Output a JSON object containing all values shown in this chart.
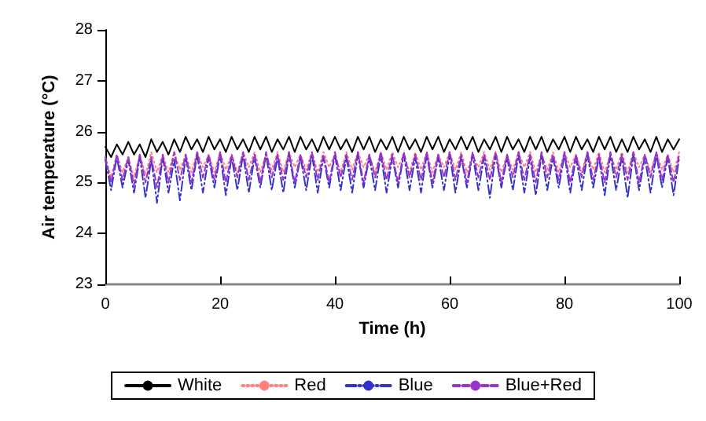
{
  "chart_data": {
    "type": "line",
    "xlabel": "Time (h)",
    "ylabel": "Air temperature (°C)",
    "x": [
      0,
      1,
      2,
      3,
      4,
      5,
      6,
      7,
      8,
      9,
      10,
      11,
      12,
      13,
      14,
      15,
      16,
      17,
      18,
      19,
      20,
      21,
      22,
      23,
      24,
      25,
      26,
      27,
      28,
      29,
      30,
      31,
      32,
      33,
      34,
      35,
      36,
      37,
      38,
      39,
      40,
      41,
      42,
      43,
      44,
      45,
      46,
      47,
      48,
      49,
      50,
      51,
      52,
      53,
      54,
      55,
      56,
      57,
      58,
      59,
      60,
      61,
      62,
      63,
      64,
      65,
      66,
      67,
      68,
      69,
      70,
      71,
      72,
      73,
      74,
      75,
      76,
      77,
      78,
      79,
      80,
      81,
      82,
      83,
      84,
      85,
      86,
      87,
      88,
      89,
      90,
      91,
      92,
      93,
      94,
      95,
      96,
      97,
      98,
      99,
      100
    ],
    "series": [
      {
        "name": "White",
        "color": "#000000",
        "line_style": "solid",
        "values": [
          25.7,
          25.5,
          25.75,
          25.55,
          25.8,
          25.55,
          25.75,
          25.5,
          25.85,
          25.6,
          25.8,
          25.55,
          25.85,
          25.6,
          25.9,
          25.65,
          25.85,
          25.6,
          25.9,
          25.65,
          25.85,
          25.6,
          25.9,
          25.65,
          25.85,
          25.6,
          25.9,
          25.65,
          25.9,
          25.6,
          25.85,
          25.65,
          25.9,
          25.6,
          25.9,
          25.65,
          25.85,
          25.6,
          25.9,
          25.65,
          25.9,
          25.65,
          25.85,
          25.6,
          25.9,
          25.65,
          25.9,
          25.6,
          25.85,
          25.65,
          25.9,
          25.6,
          25.9,
          25.65,
          25.85,
          25.6,
          25.9,
          25.65,
          25.9,
          25.6,
          25.85,
          25.65,
          25.9,
          25.65,
          25.9,
          25.6,
          25.85,
          25.65,
          25.9,
          25.6,
          25.9,
          25.65,
          25.85,
          25.6,
          25.9,
          25.65,
          25.9,
          25.6,
          25.85,
          25.65,
          25.9,
          25.6,
          25.9,
          25.65,
          25.85,
          25.6,
          25.9,
          25.65,
          25.9,
          25.6,
          25.85,
          25.6,
          25.9,
          25.65,
          25.85,
          25.6,
          25.9,
          25.6,
          25.85,
          25.65,
          25.85
        ]
      },
      {
        "name": "Red",
        "color": "#ff8080",
        "line_style": "dotted",
        "values": [
          25.5,
          25.1,
          25.55,
          25.2,
          25.5,
          25.1,
          25.55,
          25.15,
          25.6,
          25.2,
          25.55,
          25.2,
          25.6,
          25.25,
          25.55,
          25.2,
          25.6,
          25.3,
          25.55,
          25.2,
          25.6,
          25.25,
          25.55,
          25.2,
          25.6,
          25.3,
          25.6,
          25.2,
          25.55,
          25.25,
          25.6,
          25.2,
          25.6,
          25.3,
          25.55,
          25.25,
          25.6,
          25.2,
          25.6,
          25.3,
          25.55,
          25.2,
          25.6,
          25.25,
          25.6,
          25.3,
          25.55,
          25.2,
          25.6,
          25.25,
          25.6,
          25.3,
          25.55,
          25.2,
          25.6,
          25.25,
          25.6,
          25.2,
          25.55,
          25.3,
          25.6,
          25.25,
          25.6,
          25.2,
          25.55,
          25.3,
          25.6,
          25.25,
          25.6,
          25.2,
          25.55,
          25.25,
          25.6,
          25.3,
          25.6,
          25.2,
          25.55,
          25.25,
          25.6,
          25.2,
          25.6,
          25.3,
          25.55,
          25.2,
          25.6,
          25.25,
          25.6,
          25.2,
          25.55,
          25.25,
          25.6,
          25.2,
          25.6,
          25.3,
          25.55,
          25.2,
          25.6,
          25.25,
          25.55,
          25.2,
          25.6
        ]
      },
      {
        "name": "Blue",
        "color": "#3333cc",
        "line_style": "dashdot",
        "values": [
          25.45,
          24.85,
          25.5,
          24.9,
          25.45,
          24.8,
          25.5,
          24.7,
          25.45,
          24.6,
          25.5,
          24.8,
          25.45,
          24.65,
          25.5,
          24.85,
          25.55,
          24.8,
          25.5,
          24.9,
          25.55,
          24.75,
          25.5,
          24.85,
          25.55,
          24.8,
          25.5,
          24.9,
          25.55,
          24.85,
          25.5,
          24.8,
          25.55,
          24.9,
          25.5,
          24.85,
          25.55,
          24.8,
          25.5,
          24.9,
          25.55,
          24.85,
          25.5,
          24.8,
          25.55,
          24.9,
          25.5,
          24.85,
          25.55,
          24.8,
          25.5,
          24.9,
          25.55,
          24.85,
          25.5,
          24.8,
          25.55,
          24.9,
          25.5,
          24.85,
          25.55,
          24.8,
          25.5,
          24.9,
          25.55,
          24.85,
          25.5,
          24.7,
          25.55,
          24.9,
          25.5,
          24.85,
          25.55,
          24.8,
          25.5,
          24.75,
          25.55,
          24.85,
          25.5,
          24.9,
          25.55,
          24.8,
          25.5,
          24.85,
          25.55,
          24.9,
          25.5,
          24.75,
          25.55,
          24.85,
          25.5,
          24.7,
          25.55,
          24.85,
          25.5,
          24.8,
          25.55,
          24.9,
          25.5,
          24.75,
          25.5
        ]
      },
      {
        "name": "Blue+Red",
        "color": "#9933cc",
        "line_style": "dashed",
        "values": [
          25.5,
          25.0,
          25.55,
          25.05,
          25.5,
          24.95,
          25.55,
          25.0,
          25.5,
          24.9,
          25.55,
          25.0,
          25.6,
          25.05,
          25.55,
          25.0,
          25.6,
          25.1,
          25.55,
          25.05,
          25.6,
          25.0,
          25.55,
          25.1,
          25.6,
          25.05,
          25.55,
          25.0,
          25.6,
          25.1,
          25.55,
          25.05,
          25.6,
          25.0,
          25.55,
          25.1,
          25.6,
          25.05,
          25.55,
          25.0,
          25.6,
          25.1,
          25.55,
          25.05,
          25.6,
          25.0,
          25.55,
          25.1,
          25.6,
          25.05,
          25.55,
          25.0,
          25.6,
          25.1,
          25.55,
          25.05,
          25.6,
          25.0,
          25.55,
          25.1,
          25.6,
          25.05,
          25.55,
          25.0,
          25.6,
          25.1,
          25.55,
          25.05,
          25.6,
          25.0,
          25.55,
          25.1,
          25.6,
          25.05,
          25.55,
          25.0,
          25.6,
          25.1,
          25.55,
          25.05,
          25.6,
          25.0,
          25.55,
          25.1,
          25.6,
          25.05,
          25.55,
          25.0,
          25.6,
          25.1,
          25.55,
          25.05,
          25.6,
          25.0,
          25.55,
          25.1,
          25.6,
          25.05,
          25.55,
          25.0,
          25.55
        ]
      }
    ],
    "xlim": [
      0,
      100
    ],
    "xticks": [
      0,
      20,
      40,
      60,
      80,
      100
    ],
    "ylim": [
      23,
      28
    ],
    "yticks": [
      23,
      24,
      25,
      26,
      27,
      28
    ],
    "grid": false,
    "legend": "bottom",
    "marker": "none"
  }
}
